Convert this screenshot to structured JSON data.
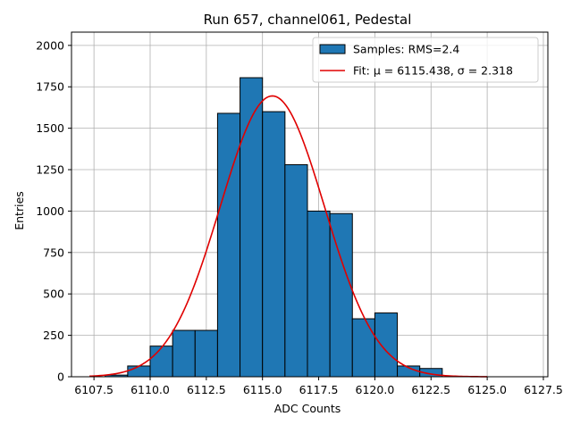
{
  "chart_data": {
    "type": "bar",
    "title": "Run 657, channel061, Pedestal",
    "xlabel": "ADC Counts",
    "ylabel": "Entries",
    "xlim": [
      6106.5,
      6127.7
    ],
    "ylim": [
      0,
      2080
    ],
    "grid": true,
    "bin_width": 1,
    "bins": [
      {
        "start": 6108,
        "count": 10
      },
      {
        "start": 6109,
        "count": 65
      },
      {
        "start": 6110,
        "count": 185
      },
      {
        "start": 6111,
        "count": 280
      },
      {
        "start": 6112,
        "count": 280
      },
      {
        "start": 6113,
        "count": 1590
      },
      {
        "start": 6114,
        "count": 1805
      },
      {
        "start": 6115,
        "count": 1600
      },
      {
        "start": 6116,
        "count": 1280
      },
      {
        "start": 6117,
        "count": 1000
      },
      {
        "start": 6118,
        "count": 985
      },
      {
        "start": 6119,
        "count": 350
      },
      {
        "start": 6120,
        "count": 385
      },
      {
        "start": 6121,
        "count": 65
      },
      {
        "start": 6122,
        "count": 50
      }
    ],
    "bar_color": "#1f77b4",
    "fit": {
      "mu": 6115.438,
      "sigma": 2.318,
      "amplitude": 1695,
      "x_range": [
        6107.3,
        6125.0
      ],
      "color": "#e00000"
    },
    "x_ticks": [
      6107.5,
      6110.0,
      6112.5,
      6115.0,
      6117.5,
      6120.0,
      6122.5,
      6125.0,
      6127.5
    ],
    "x_tick_labels": [
      "6107.5",
      "6110.0",
      "6112.5",
      "6115.0",
      "6117.5",
      "6120.0",
      "6122.5",
      "6125.0",
      "6127.5"
    ],
    "y_ticks": [
      0,
      250,
      500,
      750,
      1000,
      1250,
      1500,
      1750,
      2000
    ],
    "y_tick_labels": [
      "0",
      "250",
      "500",
      "750",
      "1000",
      "1250",
      "1500",
      "1750",
      "2000"
    ],
    "legend": {
      "position": "top-right",
      "entries": [
        {
          "label": "Samples: RMS=2.4",
          "kind": "patch"
        },
        {
          "label": "Fit: μ = 6115.438, σ = 2.318",
          "kind": "line"
        }
      ]
    }
  }
}
